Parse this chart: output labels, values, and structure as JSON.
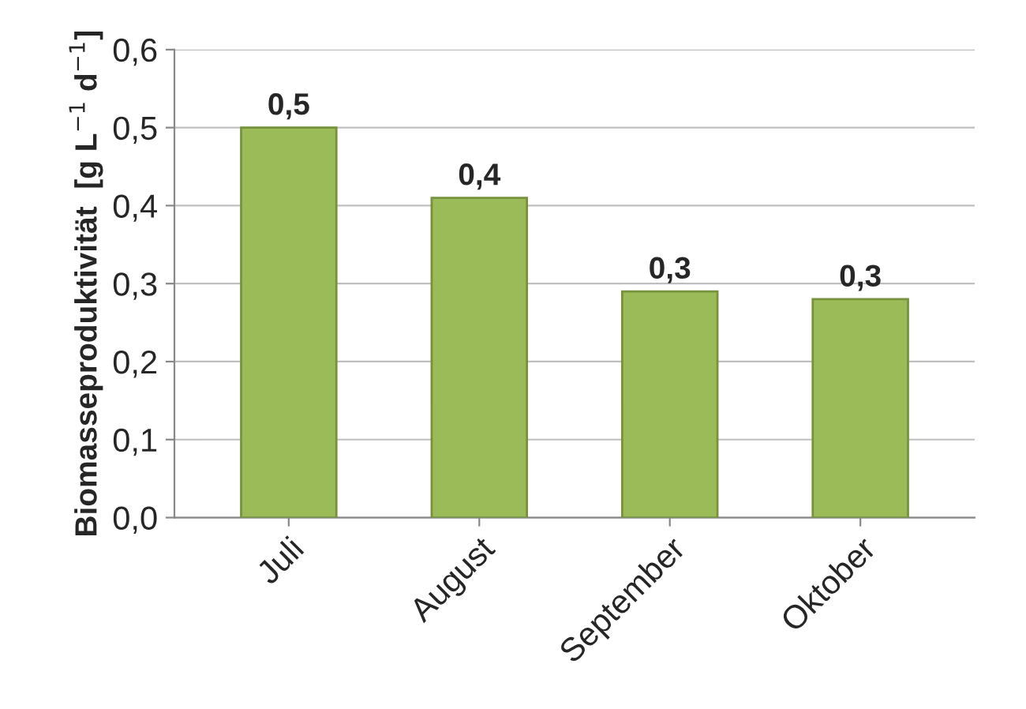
{
  "chart_data": {
    "type": "bar",
    "ylabel": "Biomasseproduktivität  [g L$^{−1}$ d$^{−1}$]",
    "categories": [
      "Juli",
      "August",
      "September",
      "Oktober"
    ],
    "values": [
      0.5,
      0.41,
      0.29,
      0.28
    ],
    "value_labels": [
      "0,5",
      "0,4",
      "0,3",
      "0,3"
    ],
    "color": "#9bbb59",
    "ylim": [
      0,
      0.6
    ],
    "yticks": [
      {
        "value": 0,
        "label": "0,0"
      },
      {
        "value": 0.1,
        "label": "0,1"
      },
      {
        "value": 0.2,
        "label": "0,2"
      },
      {
        "value": 0.3,
        "label": "0,3"
      },
      {
        "value": 0.4,
        "label": "0,4"
      },
      {
        "value": 0.5,
        "label": "0,5"
      },
      {
        "value": 0.6,
        "label": "0,6"
      }
    ],
    "grid": "y",
    "legend": false
  }
}
